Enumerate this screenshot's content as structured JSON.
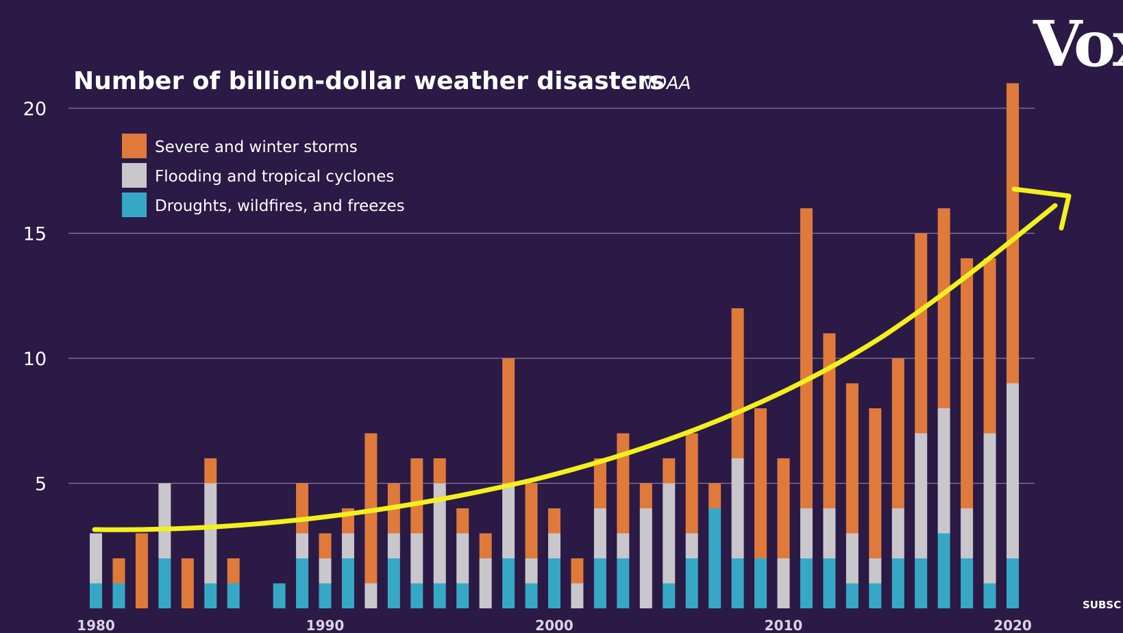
{
  "brand": {
    "logo_text": "Vox",
    "subscribe_text": "SUBSC"
  },
  "chart_data": {
    "type": "bar",
    "stacked": true,
    "title": "Number of billion-dollar weather disasters",
    "source": "NOAA",
    "x": [
      1980,
      1981,
      1982,
      1983,
      1984,
      1985,
      1986,
      1987,
      1988,
      1989,
      1990,
      1991,
      1992,
      1993,
      1994,
      1995,
      1996,
      1997,
      1998,
      1999,
      2000,
      2001,
      2002,
      2003,
      2004,
      2005,
      2006,
      2007,
      2008,
      2009,
      2010,
      2011,
      2012,
      2013,
      2014,
      2015,
      2016,
      2017,
      2018,
      2019,
      2020
    ],
    "xticks": [
      1980,
      1990,
      2000,
      2010,
      2020
    ],
    "yticks": [
      5,
      10,
      15,
      20
    ],
    "ylim": [
      0,
      21
    ],
    "grid": true,
    "legend_position": "top-left",
    "series": [
      {
        "name": "Droughts, wildfires, and freezes",
        "color": "#36a8c6",
        "values": [
          1,
          1,
          0,
          2,
          0,
          1,
          1,
          0,
          1,
          2,
          1,
          2,
          0,
          2,
          1,
          1,
          1,
          0,
          2,
          1,
          2,
          0,
          2,
          2,
          0,
          1,
          2,
          4,
          2,
          2,
          0,
          2,
          2,
          1,
          1,
          2,
          2,
          3,
          2,
          1,
          2
        ]
      },
      {
        "name": "Flooding and tropical cyclones",
        "color": "#c9c7cc",
        "values": [
          2,
          0,
          0,
          3,
          0,
          4,
          0,
          0,
          0,
          1,
          1,
          1,
          1,
          1,
          2,
          4,
          2,
          2,
          3,
          1,
          1,
          1,
          2,
          1,
          4,
          4,
          1,
          0,
          4,
          0,
          2,
          2,
          2,
          2,
          1,
          2,
          5,
          5,
          2,
          6,
          7
        ]
      },
      {
        "name": "Severe and winter storms",
        "color": "#e07a3b",
        "values": [
          0,
          1,
          3,
          0,
          2,
          1,
          1,
          0,
          0,
          2,
          1,
          1,
          6,
          2,
          3,
          1,
          1,
          1,
          5,
          3,
          1,
          1,
          2,
          4,
          1,
          1,
          4,
          1,
          6,
          6,
          4,
          12,
          7,
          6,
          6,
          6,
          8,
          8,
          10,
          7,
          12
        ]
      }
    ],
    "trend_line": {
      "color": "#f4f01e",
      "arrow": true
    }
  }
}
